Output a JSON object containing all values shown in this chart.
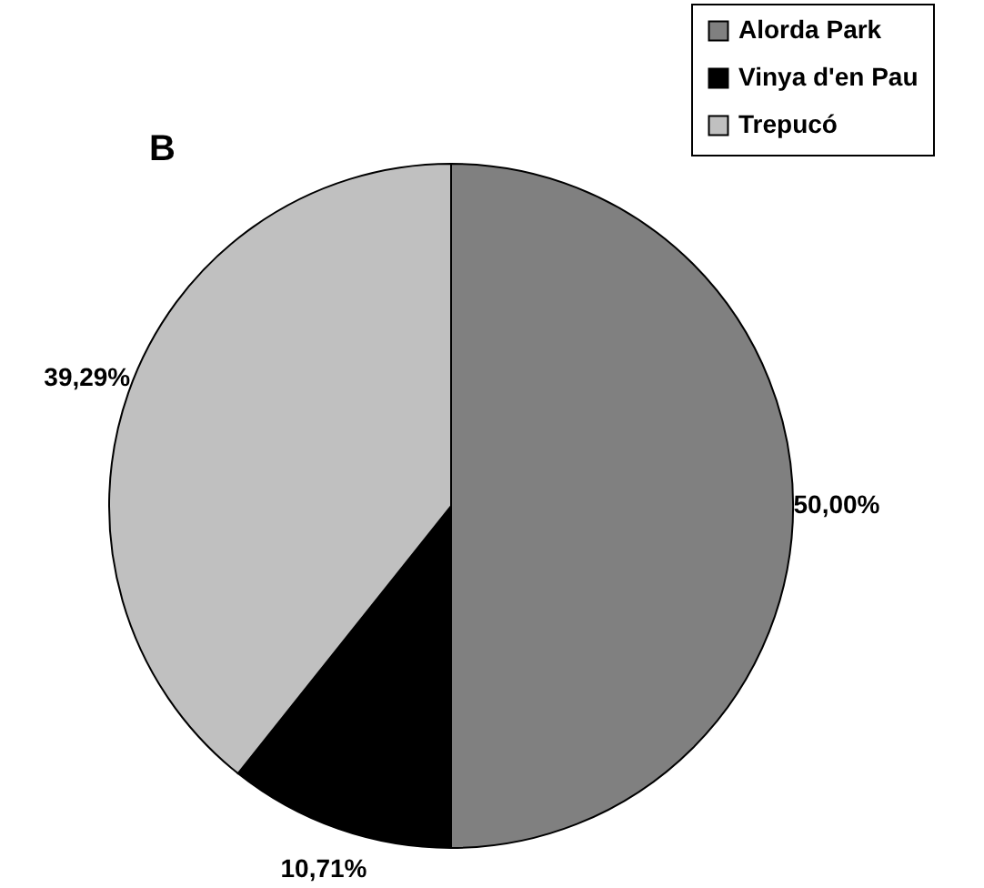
{
  "chart_data": {
    "type": "pie",
    "title": "B",
    "categories": [
      "Alorda Park",
      "Vinya d'en Pau",
      "Trepucó"
    ],
    "values": [
      50,
      10.71,
      39.29
    ],
    "colors": [
      "#808080",
      "#000000",
      "#c0c0c0"
    ],
    "value_labels": [
      "50,00%",
      "10,71%",
      "39,29%"
    ],
    "legend": "top right"
  }
}
